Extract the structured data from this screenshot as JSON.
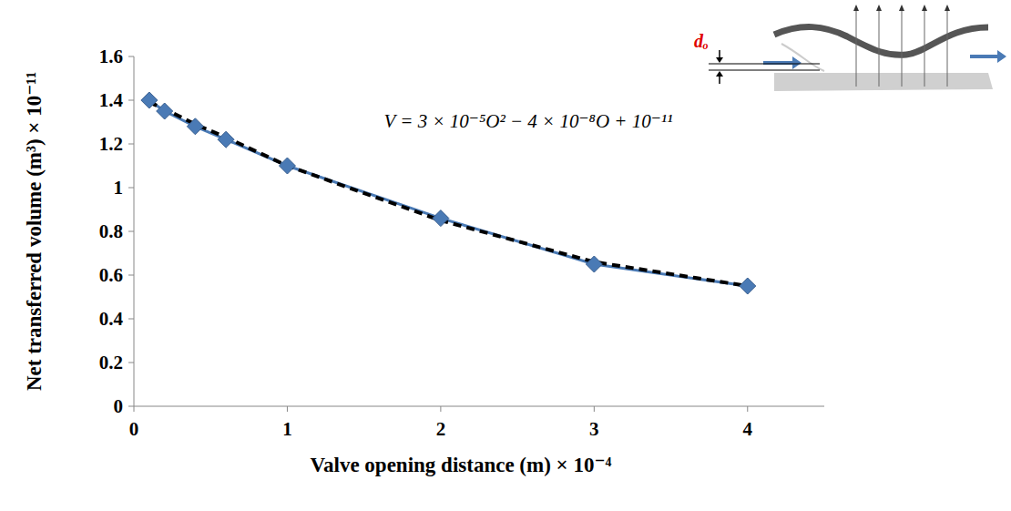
{
  "chart_data": {
    "type": "line",
    "x_label": "Valve opening distance (m) × 10⁻⁴",
    "y_label": "Net transferred volume (m³) × 10⁻¹¹",
    "annotations": [
      "V = 3 × 10⁻⁵O² − 4 × 10⁻⁸O + 10⁻¹¹",
      "dₒ"
    ],
    "x": [
      0.1,
      0.2,
      0.4,
      0.6,
      1,
      2,
      3,
      4
    ],
    "series": [
      {
        "color": "#4a7ab5",
        "marker": "diamond",
        "line_style": "solid",
        "values": [
          1.4,
          1.35,
          1.28,
          1.22,
          1.1,
          0.86,
          0.65,
          0.55
        ]
      },
      {
        "color": "#000000",
        "marker": "none",
        "line_style": "dashed",
        "values": [
          1.39,
          1.36,
          1.29,
          1.23,
          1.1,
          0.85,
          0.66,
          0.55
        ]
      }
    ],
    "xlim": [
      0,
      4.5
    ],
    "xticks": [
      0,
      1,
      2,
      3,
      4
    ],
    "ylim": [
      0,
      1.6
    ],
    "yticks": [
      0,
      0.2,
      0.4,
      0.6,
      0.8,
      1,
      1.2,
      1.4,
      1.6
    ],
    "grid": false
  }
}
